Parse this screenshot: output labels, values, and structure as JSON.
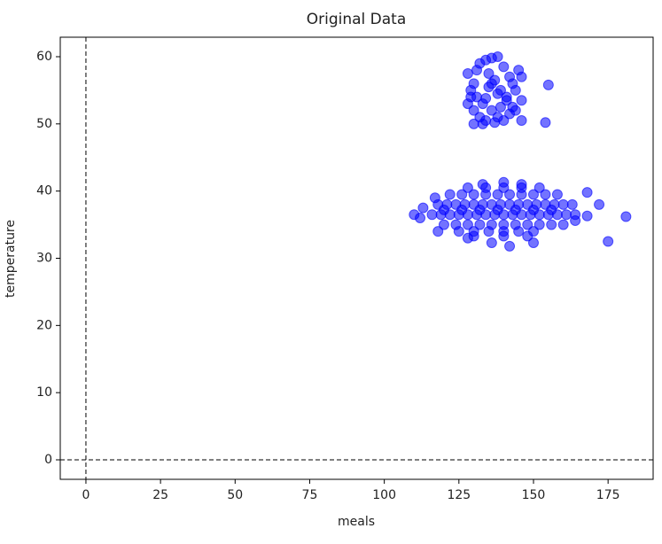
{
  "chart_data": {
    "type": "scatter",
    "title": "Original Data",
    "x_label": "meals",
    "y_label": "temperature",
    "color": "#0000ff",
    "x": [
      128,
      130,
      132,
      134,
      136,
      138,
      140,
      142,
      145,
      146,
      129,
      131,
      133,
      135,
      137,
      139,
      141,
      143,
      144,
      146,
      128,
      130,
      132,
      134,
      136,
      138,
      140,
      142,
      144,
      146,
      130,
      133,
      137,
      139,
      141,
      135,
      131,
      129,
      143,
      155,
      154,
      134,
      138,
      136,
      118,
      121,
      124,
      127,
      130,
      133,
      136,
      139,
      142,
      145,
      148,
      151,
      154,
      157,
      160,
      163,
      116,
      119,
      122,
      125,
      128,
      131,
      134,
      137,
      140,
      143,
      146,
      149,
      152,
      155,
      158,
      161,
      164,
      120,
      124,
      128,
      132,
      136,
      140,
      144,
      148,
      152,
      156,
      160,
      122,
      126,
      130,
      134,
      138,
      142,
      146,
      150,
      154,
      158,
      120,
      126,
      132,
      138,
      144,
      150,
      156,
      125,
      130,
      135,
      140,
      145,
      150,
      128,
      134,
      140,
      146,
      152,
      130,
      140,
      148,
      110,
      112,
      113,
      117,
      118,
      181,
      175,
      172,
      168,
      168,
      164,
      128,
      136,
      142,
      150,
      133,
      140,
      146
    ],
    "y": [
      57.5,
      56,
      59,
      59.5,
      59.8,
      60,
      58.5,
      57,
      58,
      57,
      55,
      54,
      53,
      55.5,
      56.5,
      55,
      54,
      56,
      55,
      53.5,
      53,
      52,
      51,
      50.5,
      52,
      51,
      50.5,
      51.5,
      52,
      50.5,
      50,
      50,
      50.2,
      52.5,
      53.5,
      57.5,
      58,
      54,
      52.5,
      55.8,
      50.2,
      53.8,
      54.5,
      56,
      38,
      38,
      38,
      38,
      38,
      38,
      38,
      38,
      38,
      38,
      38,
      38,
      38,
      38,
      38,
      38,
      36.5,
      36.5,
      36.5,
      36.5,
      36.5,
      36.5,
      36.5,
      36.5,
      36.5,
      36.5,
      36.5,
      36.5,
      36.5,
      36.5,
      36.5,
      36.5,
      36.5,
      35,
      35,
      35,
      35,
      35,
      35,
      35,
      35,
      35,
      35,
      35,
      39.5,
      39.5,
      39.5,
      39.5,
      39.5,
      39.5,
      39.5,
      39.5,
      39.5,
      39.5,
      37.2,
      37.2,
      37.2,
      37.2,
      37.2,
      37.2,
      37.2,
      34,
      34,
      34,
      34,
      34,
      34,
      40.5,
      40.5,
      40.5,
      40.5,
      40.5,
      33.3,
      33.3,
      33.3,
      36.5,
      36,
      37.5,
      39,
      34,
      36.2,
      32.5,
      38,
      39.8,
      36.3,
      35.6,
      33,
      32.3,
      31.8,
      32.3,
      41,
      41.3,
      41
    ],
    "xlim": [
      -8.6,
      190.1
    ],
    "ylim": [
      -2.9,
      62.9
    ],
    "xticks": [
      0,
      25,
      50,
      75,
      100,
      125,
      150,
      175
    ],
    "yticks": [
      0,
      10,
      20,
      30,
      40,
      50,
      60
    ],
    "axhline": 0,
    "axvline": 0
  }
}
